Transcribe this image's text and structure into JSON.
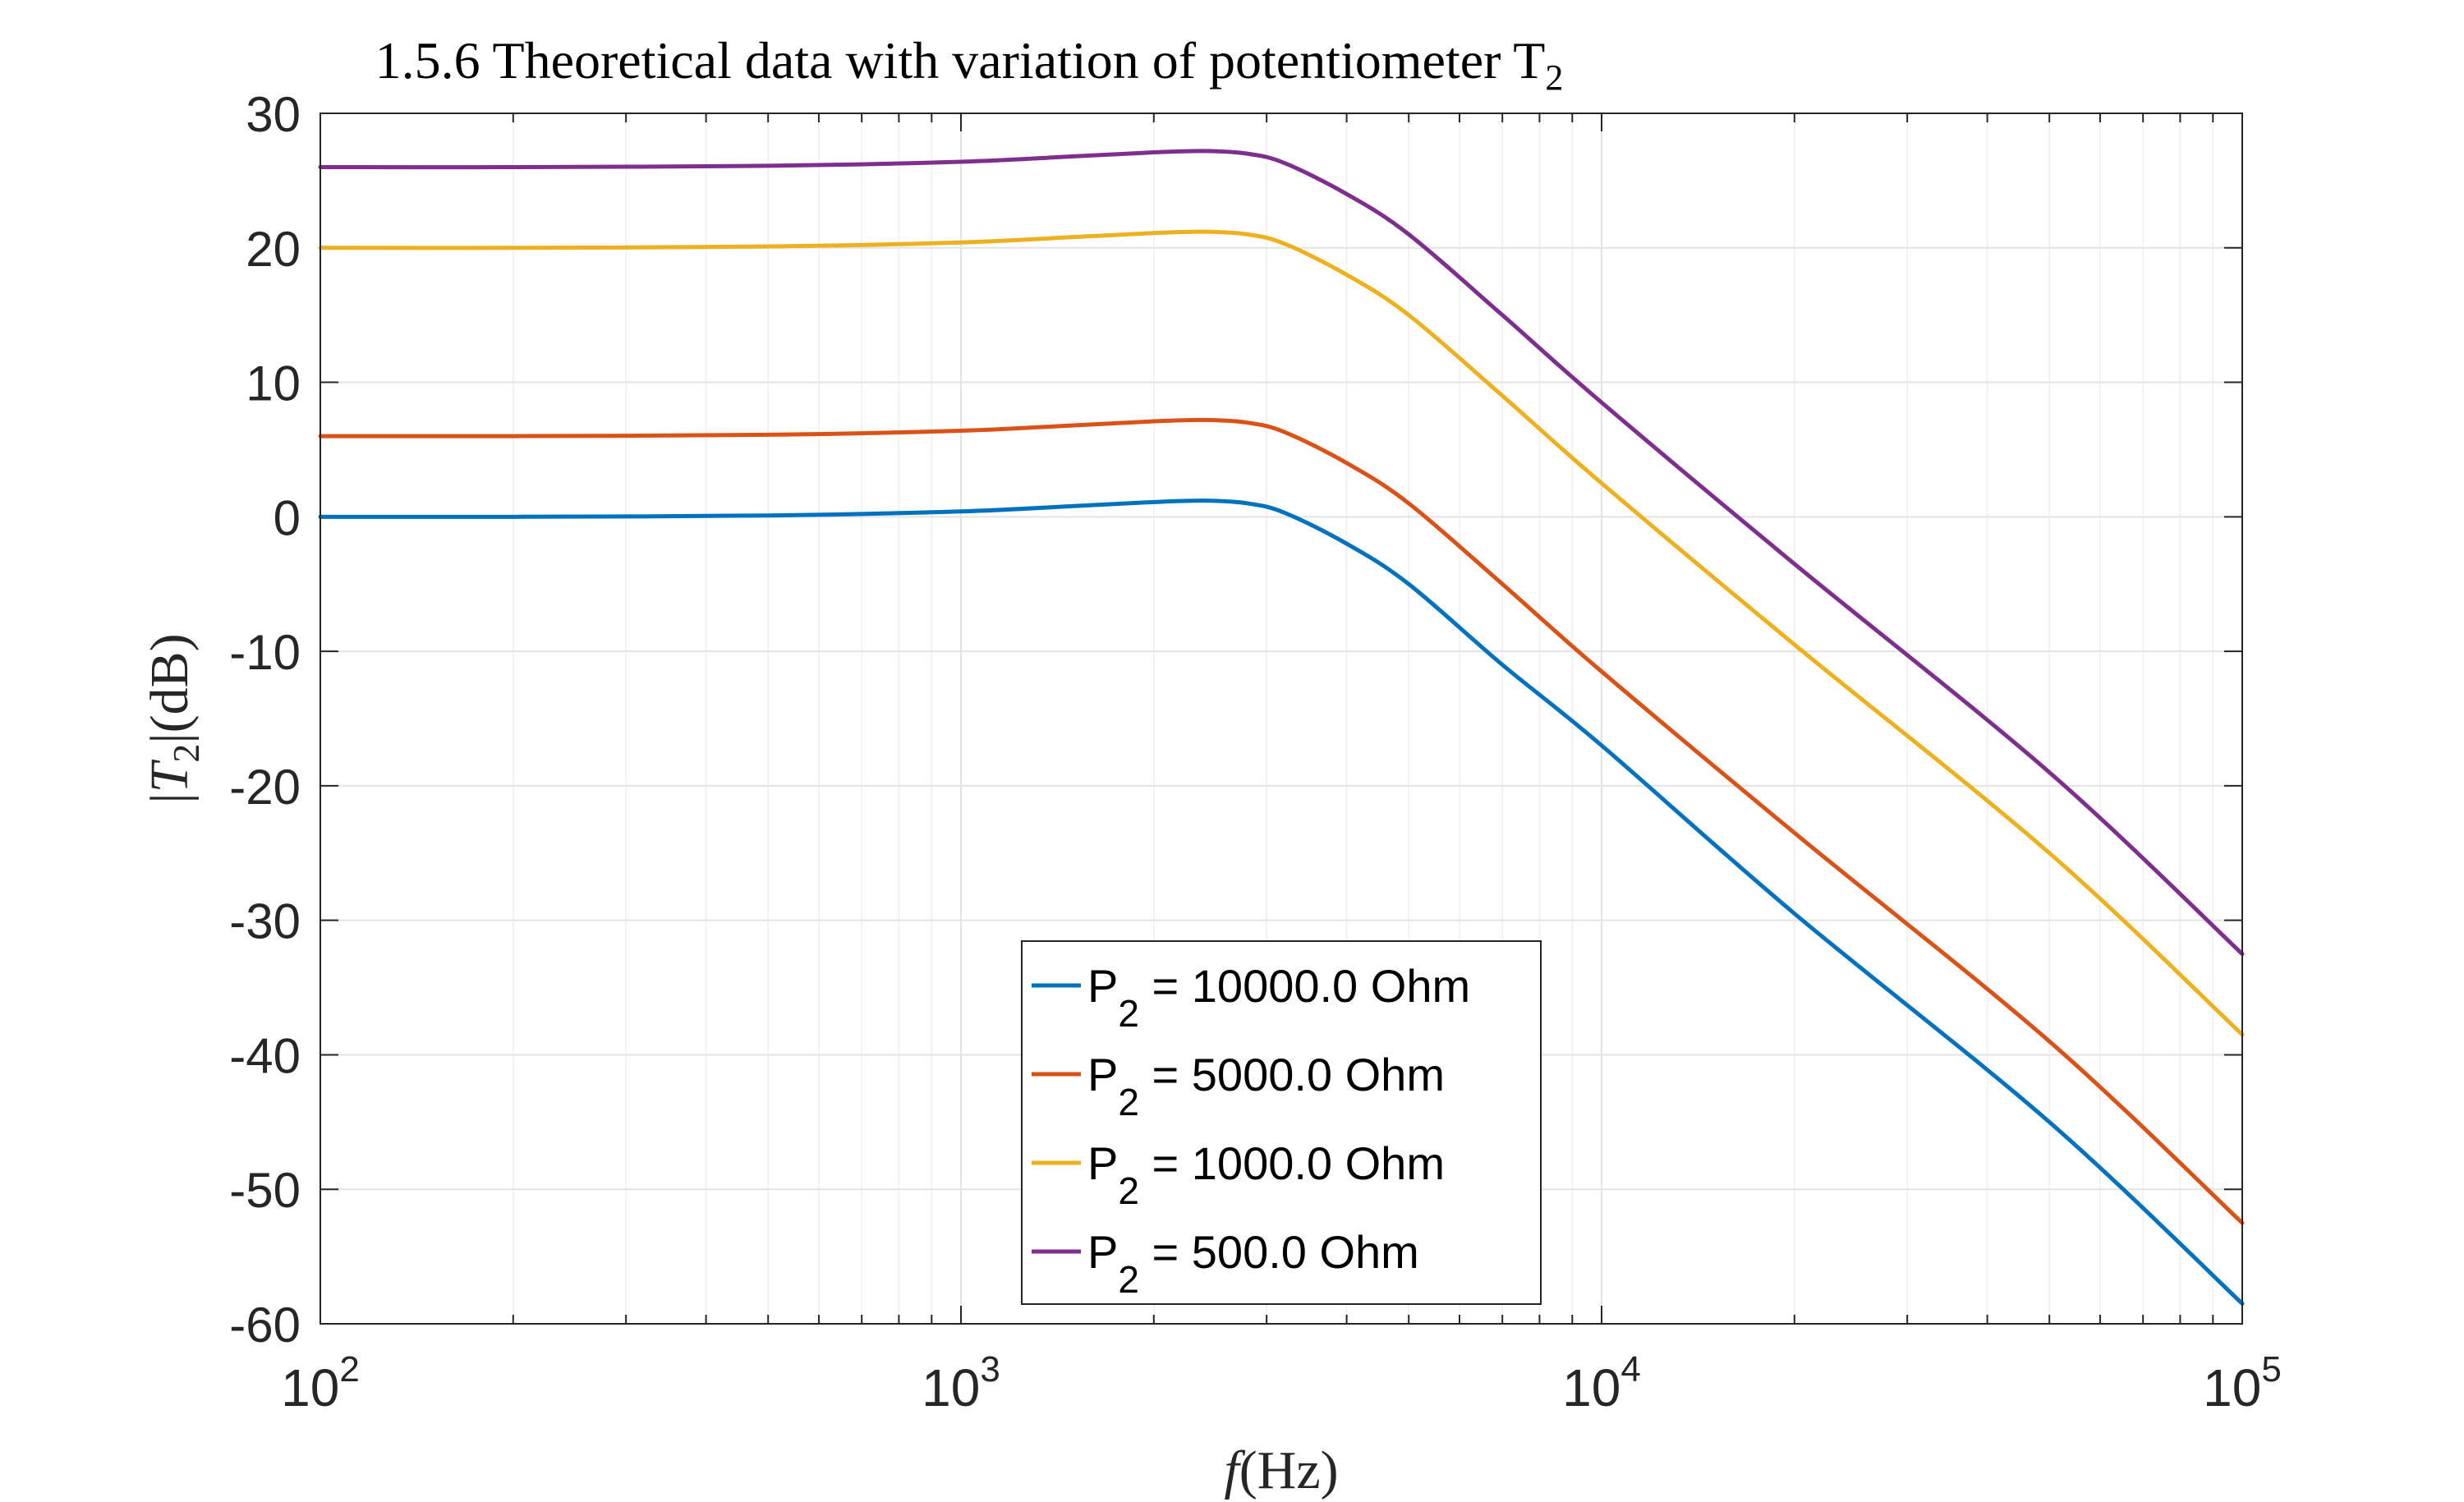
{
  "chart_data": {
    "type": "line",
    "title": "1.5.6 Theoretical data with variation of potentiometer T",
    "title_subscript": "2",
    "xlabel_italic": "f",
    "xlabel_rest": "(Hz)",
    "ylabel_pre": "|",
    "ylabel_italic": "T",
    "ylabel_subscript": "2",
    "ylabel_post": "|(dB)",
    "x_scale": "log",
    "xlim": [
      100,
      100000
    ],
    "ylim": [
      -60,
      30
    ],
    "grid": true,
    "legend_position": "bottom-center",
    "x_ticks": [
      {
        "base": "10",
        "exp": "2",
        "value": 100
      },
      {
        "base": "10",
        "exp": "3",
        "value": 1000
      },
      {
        "base": "10",
        "exp": "4",
        "value": 10000
      },
      {
        "base": "10",
        "exp": "5",
        "value": 100000
      }
    ],
    "y_ticks": [
      {
        "label": "30",
        "value": 30
      },
      {
        "label": "20",
        "value": 20
      },
      {
        "label": "10",
        "value": 10
      },
      {
        "label": "0",
        "value": 0
      },
      {
        "label": "-10",
        "value": -10
      },
      {
        "label": "-20",
        "value": -20
      },
      {
        "label": "-30",
        "value": -30
      },
      {
        "label": "-40",
        "value": -40
      },
      {
        "label": "-50",
        "value": -50
      },
      {
        "label": "-60",
        "value": -60
      }
    ],
    "series": [
      {
        "name_main": "P",
        "name_sub": "2",
        "name_rest": " = 10000.0 Ohm",
        "color": "#0072BD",
        "x": [
          100,
          200,
          500,
          1000,
          1500,
          2000,
          2400,
          2800,
          3200,
          4000,
          5000,
          7000,
          10000,
          20000,
          50000,
          100000
        ],
        "y": [
          0.0,
          0.0,
          0.1,
          0.4,
          0.8,
          1.1,
          1.2,
          1.0,
          0.3,
          -2.0,
          -5.0,
          -11.0,
          -17.0,
          -29.5,
          -45.0,
          -58.5
        ]
      },
      {
        "name_main": "P",
        "name_sub": "2",
        "name_rest": " = 5000.0 Ohm",
        "color": "#D95319",
        "x": [
          100,
          200,
          500,
          1000,
          1500,
          2000,
          2400,
          2800,
          3200,
          4000,
          5000,
          7000,
          10000,
          20000,
          50000,
          100000
        ],
        "y": [
          6.0,
          6.0,
          6.1,
          6.4,
          6.8,
          7.1,
          7.2,
          7.0,
          6.3,
          4.0,
          1.0,
          -5.0,
          -11.5,
          -23.5,
          -39.0,
          -52.5
        ]
      },
      {
        "name_main": "P",
        "name_sub": "2",
        "name_rest": " = 1000.0 Ohm",
        "color": "#EDB120",
        "x": [
          100,
          200,
          500,
          1000,
          1500,
          2000,
          2400,
          2800,
          3200,
          4000,
          5000,
          7000,
          10000,
          20000,
          50000,
          100000
        ],
        "y": [
          20.0,
          20.0,
          20.1,
          20.4,
          20.8,
          21.1,
          21.2,
          21.0,
          20.3,
          18.0,
          15.0,
          9.0,
          2.5,
          -9.5,
          -25.0,
          -38.5
        ]
      },
      {
        "name_main": "P",
        "name_sub": "2",
        "name_rest": " = 500.0 Ohm",
        "color": "#7E2F8E",
        "x": [
          100,
          200,
          500,
          1000,
          1500,
          2000,
          2400,
          2800,
          3200,
          4000,
          5000,
          7000,
          10000,
          20000,
          50000,
          100000
        ],
        "y": [
          26.0,
          26.0,
          26.1,
          26.4,
          26.8,
          27.1,
          27.2,
          27.0,
          26.3,
          24.0,
          21.0,
          15.0,
          8.5,
          -3.5,
          -19.0,
          -32.5
        ]
      }
    ]
  }
}
